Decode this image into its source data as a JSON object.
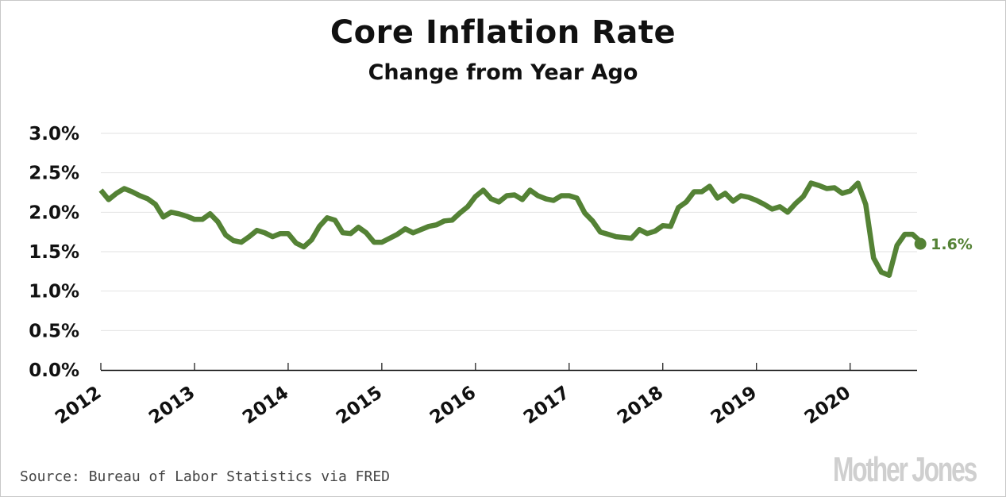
{
  "chart_data": {
    "type": "line",
    "title": "Core Inflation Rate",
    "subtitle": "Change from Year Ago",
    "xlabel": "",
    "ylabel": "",
    "ylim": [
      0,
      3.0
    ],
    "yticks": [
      {
        "value": 0.0,
        "label": "0.0%"
      },
      {
        "value": 0.5,
        "label": "0.5%"
      },
      {
        "value": 1.0,
        "label": "1.0%"
      },
      {
        "value": 1.5,
        "label": "1.5%"
      },
      {
        "value": 2.0,
        "label": "2.0%"
      },
      {
        "value": 2.5,
        "label": "2.5%"
      },
      {
        "value": 3.0,
        "label": "3.0%"
      }
    ],
    "xticks": [
      "2012",
      "2013",
      "2014",
      "2015",
      "2016",
      "2017",
      "2018",
      "2019",
      "2020"
    ],
    "x_start": "2012-01",
    "x_end_axis": "2020-10",
    "frequency": "monthly",
    "grid": true,
    "line_color": "#548235",
    "series": [
      {
        "name": "Core CPI, change from year ago (%)",
        "values": [
          2.28,
          2.16,
          2.24,
          2.3,
          2.26,
          2.21,
          2.17,
          2.1,
          1.94,
          2.0,
          1.98,
          1.95,
          1.91,
          1.91,
          1.98,
          1.88,
          1.71,
          1.64,
          1.62,
          1.69,
          1.77,
          1.74,
          1.69,
          1.73,
          1.73,
          1.61,
          1.56,
          1.65,
          1.82,
          1.93,
          1.9,
          1.74,
          1.73,
          1.81,
          1.74,
          1.62,
          1.62,
          1.67,
          1.72,
          1.79,
          1.74,
          1.78,
          1.82,
          1.84,
          1.89,
          1.9,
          1.99,
          2.07,
          2.2,
          2.28,
          2.17,
          2.13,
          2.21,
          2.22,
          2.16,
          2.28,
          2.21,
          2.17,
          2.15,
          2.21,
          2.21,
          2.18,
          1.99,
          1.89,
          1.75,
          1.72,
          1.69,
          1.68,
          1.67,
          1.78,
          1.73,
          1.76,
          1.83,
          1.82,
          2.06,
          2.13,
          2.26,
          2.26,
          2.33,
          2.18,
          2.24,
          2.14,
          2.21,
          2.19,
          2.15,
          2.1,
          2.04,
          2.07,
          2.0,
          2.11,
          2.2,
          2.37,
          2.34,
          2.3,
          2.31,
          2.24,
          2.27,
          2.37,
          2.1,
          1.42,
          1.24,
          1.2,
          1.58,
          1.72,
          1.72,
          1.63
        ]
      }
    ],
    "annotations": [
      {
        "text": "1.6%",
        "at": "2020-10",
        "value": 1.6
      }
    ]
  },
  "header": {
    "title": "Core Inflation Rate",
    "subtitle": "Change from Year Ago"
  },
  "footer": {
    "source": "Source: Bureau of Labor Statistics via FRED",
    "logo": "Mother Jones"
  }
}
